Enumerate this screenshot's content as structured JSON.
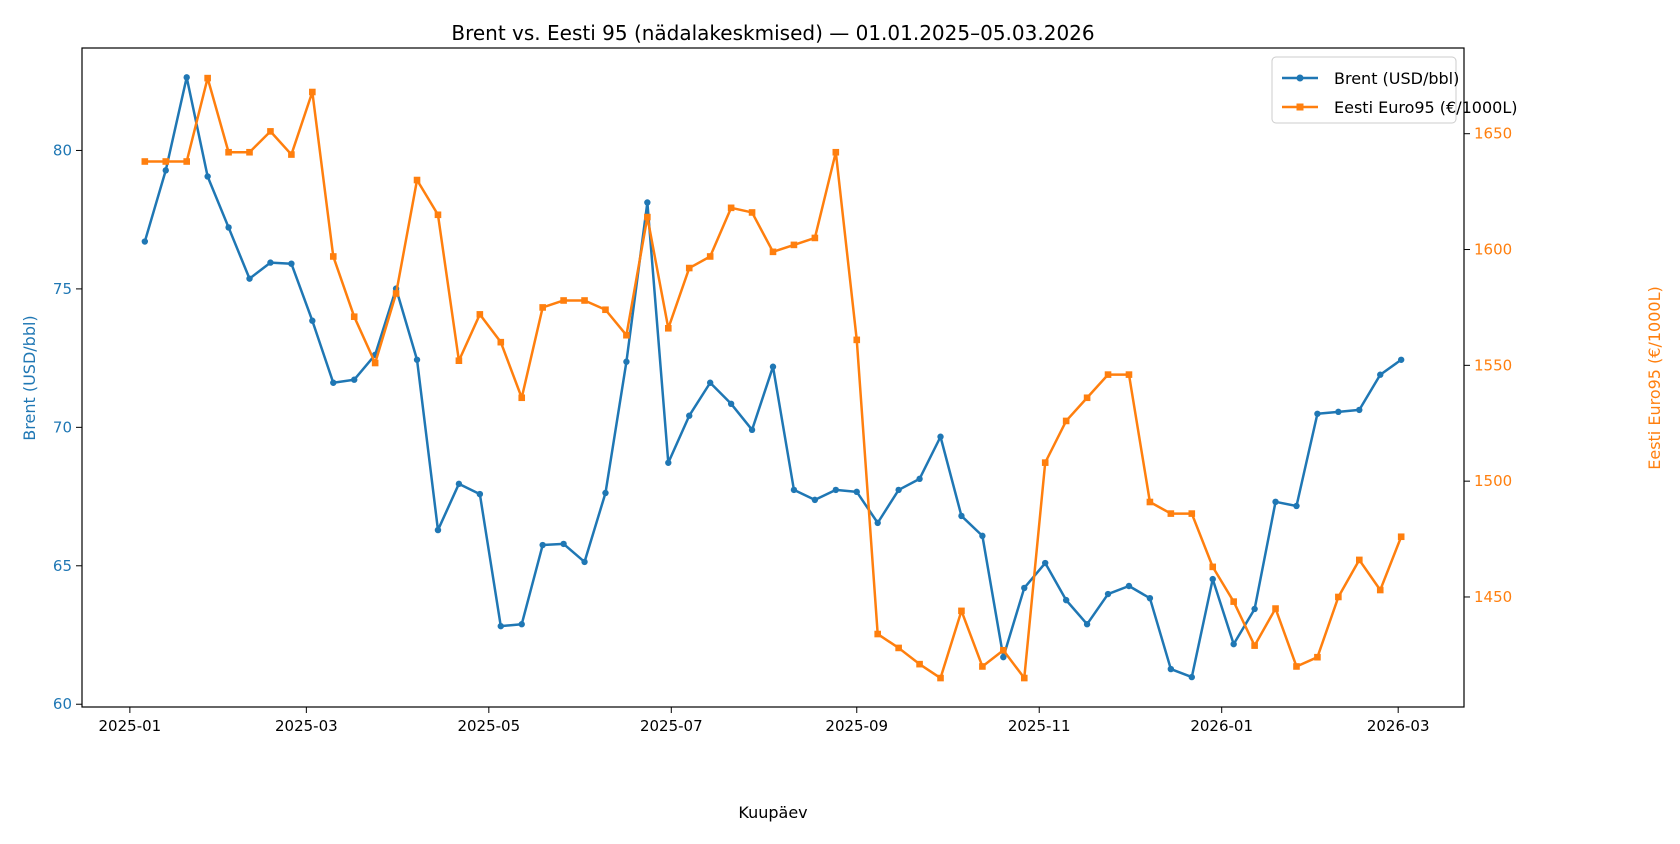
{
  "chart_data": {
    "type": "line",
    "title": "Brent vs. Eesti 95 (nädalakeskmised) — 01.01.2025–05.03.2026",
    "xlabel": "Kuupäev",
    "ylabel_left": "Brent (USD/bbl)",
    "ylabel_right": "Eesti Euro95 (€/1000L)",
    "xlim": [
      "2024-12-16",
      "2026-03-23"
    ],
    "ylim_left": [
      59.9,
      83.7
    ],
    "ylim_right": [
      1402.5,
      1687
    ],
    "x_ticks": [
      "2025-01",
      "2025-03",
      "2025-05",
      "2025-07",
      "2025-09",
      "2025-11",
      "2026-01",
      "2026-03"
    ],
    "y_ticks_left": [
      60,
      65,
      70,
      75,
      80
    ],
    "y_ticks_right": [
      1450,
      1500,
      1550,
      1600,
      1650
    ],
    "grid": false,
    "legend_position": "top-right",
    "x": [
      "2025-01-06",
      "2025-01-13",
      "2025-01-20",
      "2025-01-27",
      "2025-02-03",
      "2025-02-10",
      "2025-02-17",
      "2025-02-24",
      "2025-03-03",
      "2025-03-10",
      "2025-03-17",
      "2025-03-24",
      "2025-03-31",
      "2025-04-07",
      "2025-04-14",
      "2025-04-21",
      "2025-04-28",
      "2025-05-05",
      "2025-05-12",
      "2025-05-19",
      "2025-05-26",
      "2025-06-02",
      "2025-06-09",
      "2025-06-16",
      "2025-06-23",
      "2025-06-30",
      "2025-07-07",
      "2025-07-14",
      "2025-07-21",
      "2025-07-28",
      "2025-08-04",
      "2025-08-11",
      "2025-08-18",
      "2025-08-25",
      "2025-09-01",
      "2025-09-08",
      "2025-09-15",
      "2025-09-22",
      "2025-09-29",
      "2025-10-06",
      "2025-10-13",
      "2025-10-20",
      "2025-10-27",
      "2025-11-03",
      "2025-11-10",
      "2025-11-17",
      "2025-11-24",
      "2025-12-01",
      "2025-12-08",
      "2025-12-15",
      "2025-12-22",
      "2025-12-29",
      "2026-01-05",
      "2026-01-12",
      "2026-01-19",
      "2026-01-26",
      "2026-02-02",
      "2026-02-09",
      "2026-02-16",
      "2026-02-23",
      "2026-03-02"
    ],
    "series": [
      {
        "name": "Brent (USD/bbl)",
        "axis": "left",
        "color": "#1f77b4",
        "marker": "circle",
        "values": [
          76.71,
          79.28,
          82.64,
          79.06,
          77.22,
          75.37,
          75.95,
          75.91,
          73.85,
          71.61,
          71.72,
          72.62,
          75.01,
          72.44,
          66.29,
          67.96,
          67.59,
          62.82,
          62.89,
          65.75,
          65.79,
          65.14,
          67.63,
          72.37,
          78.12,
          68.72,
          70.42,
          71.61,
          70.85,
          69.91,
          72.19,
          67.74,
          67.38,
          67.74,
          67.67,
          66.55,
          67.74,
          68.14,
          69.66,
          66.8,
          66.08,
          61.7,
          64.2,
          65.1,
          63.76,
          62.89,
          63.98,
          64.27,
          63.83,
          61.27,
          60.98,
          64.52,
          62.17,
          63.44,
          67.31,
          67.16,
          70.49,
          70.56,
          70.63,
          71.9,
          72.44
        ]
      },
      {
        "name": "Eesti Euro95 (€/1000L)",
        "axis": "right",
        "color": "#ff7f0e",
        "marker": "square",
        "values": [
          1638,
          1638,
          1638,
          1674,
          1642,
          1642,
          1651,
          1641,
          1668,
          1597,
          1571,
          1551,
          1581,
          1630,
          1615,
          1552,
          1572,
          1560,
          1536,
          1575,
          1578,
          1578,
          1574,
          1563,
          1614,
          1566,
          1592,
          1597,
          1618,
          1616,
          1599,
          1602,
          1605,
          1642,
          1561,
          1434,
          1428,
          1421,
          1415,
          1444,
          1420,
          1427,
          1415,
          1508,
          1526,
          1536,
          1546,
          1546,
          1491,
          1486,
          1486,
          1463,
          1448,
          1429,
          1445,
          1420,
          1424,
          1450,
          1466,
          1453,
          1476
        ]
      }
    ]
  }
}
